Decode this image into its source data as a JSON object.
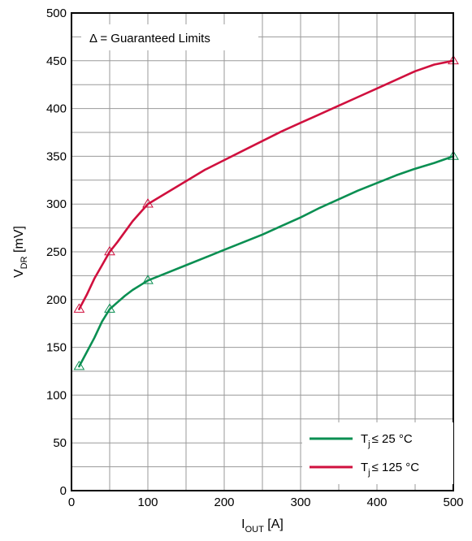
{
  "chart_data": {
    "type": "line",
    "xlim": [
      0,
      500
    ],
    "ylim": [
      0,
      500
    ],
    "grid": true,
    "x_ticks": [
      "0",
      "100",
      "200",
      "300",
      "400",
      "500"
    ],
    "y_ticks": [
      "0",
      "50",
      "100",
      "150",
      "200",
      "250",
      "300",
      "350",
      "400",
      "450",
      "500"
    ],
    "xlabel": {
      "main": "I",
      "sub": "OUT",
      "unit": " [A]"
    },
    "ylabel": {
      "main": "V",
      "sub": "DR",
      "unit": " [mV]"
    },
    "annotation": "Δ = Guaranteed Limits",
    "legend_position": "bottom-right",
    "series": [
      {
        "name_main": "T",
        "name_sub": "j",
        "name_rest": "≤ 25 °C",
        "color": "#0a8f52",
        "x": [
          10,
          20,
          30,
          40,
          50,
          60,
          70,
          80,
          90,
          100,
          125,
          150,
          175,
          200,
          225,
          250,
          275,
          300,
          325,
          350,
          375,
          400,
          425,
          450,
          475,
          500
        ],
        "y": [
          130,
          145,
          160,
          177,
          190,
          197,
          204,
          210,
          215,
          220,
          228,
          236,
          244,
          252,
          260,
          268,
          277,
          286,
          296,
          305,
          314,
          322,
          330,
          337,
          343,
          350
        ],
        "markers": [
          [
            10,
            130
          ],
          [
            50,
            190
          ],
          [
            100,
            220
          ],
          [
            500,
            350
          ]
        ]
      },
      {
        "name_main": "T",
        "name_sub": "j",
        "name_rest": "≤ 125 °C",
        "color": "#d0103e",
        "x": [
          10,
          20,
          30,
          40,
          50,
          60,
          70,
          80,
          90,
          100,
          125,
          150,
          175,
          200,
          225,
          250,
          275,
          300,
          325,
          350,
          375,
          400,
          425,
          450,
          475,
          500
        ],
        "y": [
          190,
          205,
          222,
          236,
          250,
          260,
          271,
          282,
          291,
          300,
          312,
          324,
          336,
          346,
          356,
          366,
          376,
          385,
          394,
          403,
          412,
          421,
          430,
          439,
          446,
          450
        ],
        "markers": [
          [
            10,
            190
          ],
          [
            50,
            250
          ],
          [
            100,
            300
          ],
          [
            500,
            450
          ]
        ]
      }
    ]
  }
}
